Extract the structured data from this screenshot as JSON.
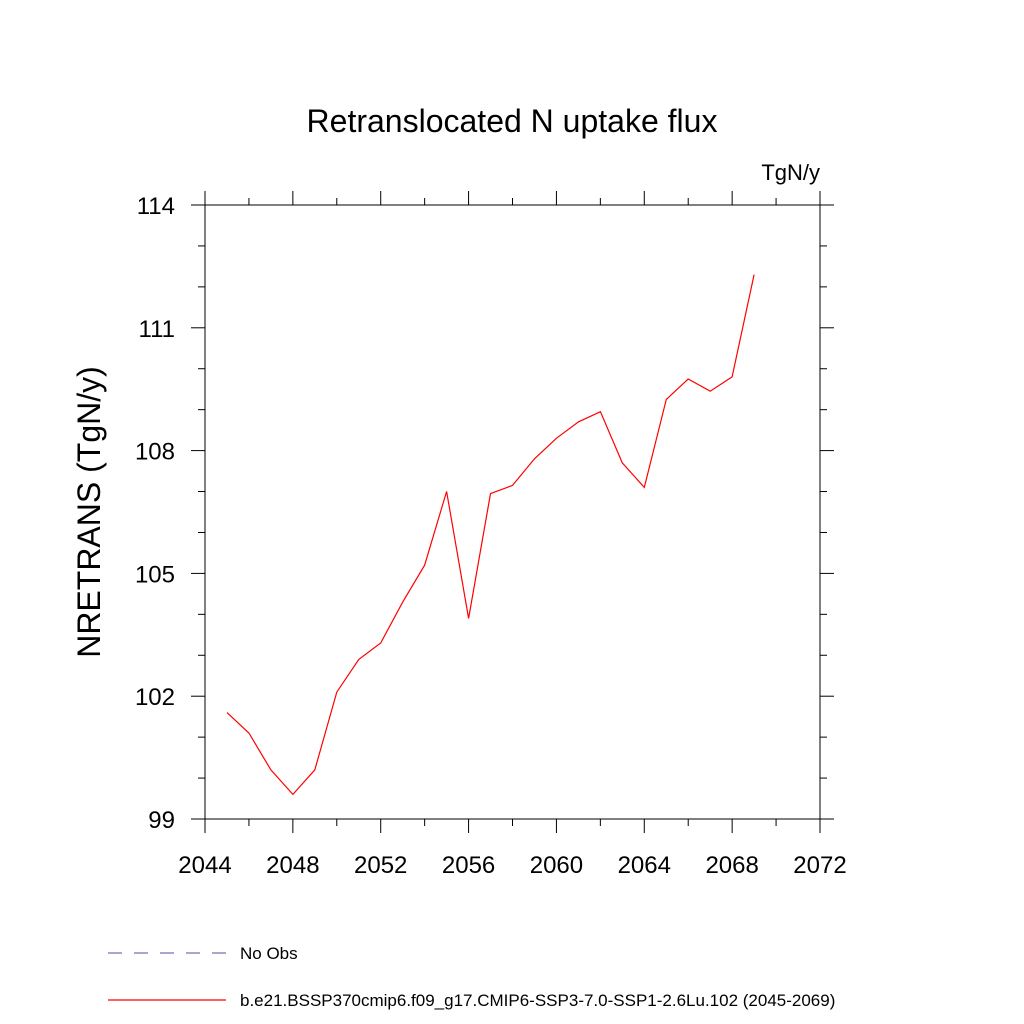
{
  "chart_data": {
    "type": "line",
    "title": "Retranslocated N uptake flux",
    "units": "TgN/y",
    "xlabel": "",
    "ylabel": "NRETRANS  (TgN/y)",
    "xlim": [
      2044,
      2072
    ],
    "ylim": [
      99,
      114
    ],
    "x_ticks": [
      2044,
      2048,
      2052,
      2056,
      2060,
      2064,
      2068,
      2072
    ],
    "x_minor_ticks": [
      2046,
      2050,
      2054,
      2058,
      2062,
      2066,
      2070
    ],
    "y_ticks": [
      99,
      102,
      105,
      108,
      111,
      114
    ],
    "y_minor_step": 1,
    "x_tick_labels": [
      "2044",
      "2048",
      "2052",
      "2056",
      "2060",
      "2064",
      "2068",
      "2072"
    ],
    "y_tick_labels": [
      "99",
      "102",
      "105",
      "108",
      "111",
      "114"
    ],
    "grid": false,
    "legend_position": "bottom",
    "series": [
      {
        "name": "b.e21.BSSP370cmip6.f09_g17.CMIP6-SSP3-7.0-SSP1-2.6Lu.102 (2045-2069)",
        "color": "#ff0000",
        "style": "solid",
        "x": [
          2045,
          2046,
          2047,
          2048,
          2049,
          2050,
          2051,
          2052,
          2053,
          2054,
          2055,
          2056,
          2057,
          2058,
          2059,
          2060,
          2061,
          2062,
          2063,
          2064,
          2065,
          2066,
          2067,
          2068,
          2069
        ],
        "y": [
          101.6,
          101.1,
          100.2,
          99.6,
          100.2,
          102.1,
          102.9,
          103.3,
          104.3,
          105.2,
          107.0,
          103.9,
          106.95,
          107.15,
          107.8,
          108.3,
          108.7,
          108.95,
          107.7,
          107.1,
          109.25,
          109.75,
          109.45,
          109.8,
          112.3
        ]
      },
      {
        "name": "No Obs",
        "color": "#7a6fb8",
        "style": "dashed",
        "x": [],
        "y": []
      }
    ]
  }
}
